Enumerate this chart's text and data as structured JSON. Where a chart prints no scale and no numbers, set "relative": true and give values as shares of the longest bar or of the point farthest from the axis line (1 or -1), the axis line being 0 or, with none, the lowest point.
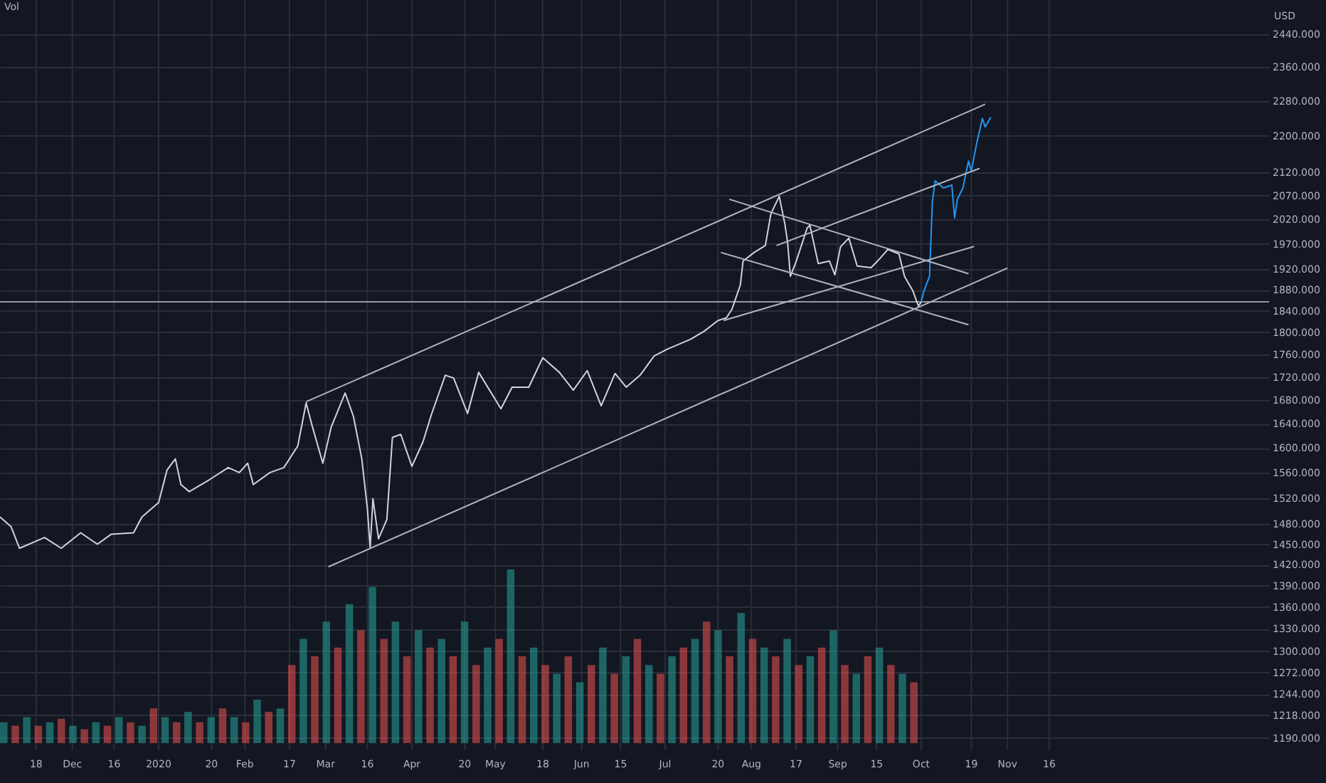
{
  "chart_data": [
    {
      "type": "line",
      "ylabel": "USD",
      "log": "y",
      "grid": true,
      "xlim": [
        "2019-11-05",
        "2021-02-03"
      ],
      "xticks": [
        {
          "value": "2019-11-18",
          "label": "18"
        },
        {
          "value": "2019-12-01",
          "label": "Dec"
        },
        {
          "value": "2019-12-16",
          "label": "16"
        },
        {
          "value": "2020-01-01",
          "label": "2020"
        },
        {
          "value": "2020-01-20",
          "label": "20"
        },
        {
          "value": "2020-02-01",
          "label": "Feb"
        },
        {
          "value": "2020-02-17",
          "label": "17"
        },
        {
          "value": "2020-03-01",
          "label": "Mar"
        },
        {
          "value": "2020-03-16",
          "label": "16"
        },
        {
          "value": "2020-04-01",
          "label": "Apr"
        },
        {
          "value": "2020-04-20",
          "label": "20"
        },
        {
          "value": "2020-05-01",
          "label": "May"
        },
        {
          "value": "2020-05-18",
          "label": "18"
        },
        {
          "value": "2020-06-01",
          "label": "Jun"
        },
        {
          "value": "2020-06-15",
          "label": "15"
        },
        {
          "value": "2020-07-01",
          "label": "Jul"
        },
        {
          "value": "2020-07-20",
          "label": "20"
        },
        {
          "value": "2020-08-01",
          "label": "Aug"
        },
        {
          "value": "2020-08-17",
          "label": "17"
        },
        {
          "value": "2020-09-01",
          "label": "Sep"
        },
        {
          "value": "2020-09-15",
          "label": "15"
        },
        {
          "value": "2020-10-01",
          "label": "Oct"
        },
        {
          "value": "2020-10-19",
          "label": "19"
        },
        {
          "value": "2020-11-01",
          "label": "Nov"
        },
        {
          "value": "2020-11-16",
          "label": "16"
        }
      ],
      "ylim": [
        1175,
        2527
      ],
      "yticks": [
        {
          "value": 2440,
          "label": "2440.000"
        },
        {
          "value": 2360,
          "label": "2360.000"
        },
        {
          "value": 2280,
          "label": "2280.000"
        },
        {
          "value": 2200,
          "label": "2200.000"
        },
        {
          "value": 2120,
          "label": "2120.000"
        },
        {
          "value": 2070,
          "label": "2070.000"
        },
        {
          "value": 2020,
          "label": "2020.000"
        },
        {
          "value": 1970,
          "label": "1970.000"
        },
        {
          "value": 1920,
          "label": "1920.000"
        },
        {
          "value": 1880,
          "label": "1880.000"
        },
        {
          "value": 1840,
          "label": "1840.000"
        },
        {
          "value": 1800,
          "label": "1800.000"
        },
        {
          "value": 1760,
          "label": "1760.000"
        },
        {
          "value": 1720,
          "label": "1720.000"
        },
        {
          "value": 1680,
          "label": "1680.000"
        },
        {
          "value": 1640,
          "label": "1640.000"
        },
        {
          "value": 1600,
          "label": "1600.000"
        },
        {
          "value": 1560,
          "label": "1560.000"
        },
        {
          "value": 1520,
          "label": "1520.000"
        },
        {
          "value": 1480,
          "label": "1480.000"
        },
        {
          "value": 1450,
          "label": "1450.000"
        },
        {
          "value": 1420,
          "label": "1420.000"
        },
        {
          "value": 1390,
          "label": "1390.000"
        },
        {
          "value": 1360,
          "label": "1360.000"
        },
        {
          "value": 1330,
          "label": "1330.000"
        },
        {
          "value": 1300,
          "label": "1300.000"
        },
        {
          "value": 1272,
          "label": "1272.000"
        },
        {
          "value": 1244,
          "label": "1244.000"
        },
        {
          "value": 1218,
          "label": "1218.000"
        },
        {
          "value": 1190,
          "label": "1190.000"
        }
      ],
      "ref_lines": [
        {
          "axis": "y",
          "value": 1857,
          "color": "#9598a1"
        }
      ],
      "series": [
        {
          "color": "#d1d4dc",
          "x": [
            "2019-11-05",
            "2019-11-09",
            "2019-11-12",
            "2019-11-21",
            "2019-11-27",
            "2019-12-04",
            "2019-12-10",
            "2019-12-15",
            "2019-12-23",
            "2019-12-26",
            "2020-01-01",
            "2020-01-04",
            "2020-01-07",
            "2020-01-09",
            "2020-01-12",
            "2020-01-19",
            "2020-01-26",
            "2020-01-30",
            "2020-02-02",
            "2020-02-04",
            "2020-02-10",
            "2020-02-15",
            "2020-02-20",
            "2020-02-23",
            "2020-02-25",
            "2020-02-29",
            "2020-03-03",
            "2020-03-08",
            "2020-03-11",
            "2020-03-14",
            "2020-03-16",
            "2020-03-17",
            "2020-03-18",
            "2020-03-20",
            "2020-03-23",
            "2020-03-25",
            "2020-03-28",
            "2020-04-01",
            "2020-04-05",
            "2020-04-08",
            "2020-04-13",
            "2020-04-16",
            "2020-04-21",
            "2020-04-25",
            "2020-05-03",
            "2020-05-07",
            "2020-05-13",
            "2020-05-18",
            "2020-05-24",
            "2020-05-29",
            "2020-06-03",
            "2020-06-08",
            "2020-06-13",
            "2020-06-17",
            "2020-06-22",
            "2020-06-27",
            "2020-07-02",
            "2020-07-10",
            "2020-07-15",
            "2020-07-20",
            "2020-07-23",
            "2020-07-25",
            "2020-07-28",
            "2020-07-29",
            "2020-08-02",
            "2020-08-06",
            "2020-08-08",
            "2020-08-11",
            "2020-08-13",
            "2020-08-14",
            "2020-08-15",
            "2020-08-17",
            "2020-08-21",
            "2020-08-22",
            "2020-08-25",
            "2020-08-29",
            "2020-08-31",
            "2020-09-02",
            "2020-09-05",
            "2020-09-08",
            "2020-09-13",
            "2020-09-16",
            "2020-09-19",
            "2020-09-23",
            "2020-09-25",
            "2020-09-28",
            "2020-09-30",
            "2020-10-01"
          ],
          "values": [
            1491,
            1476,
            1444,
            1460,
            1444,
            1467,
            1450,
            1465,
            1467,
            1491,
            1513,
            1564,
            1582,
            1541,
            1530,
            1548,
            1568,
            1560,
            1575,
            1541,
            1560,
            1568,
            1603,
            1675,
            1639,
            1575,
            1634,
            1692,
            1652,
            1582,
            1504,
            1444,
            1519,
            1458,
            1487,
            1617,
            1622,
            1570,
            1610,
            1655,
            1723,
            1718,
            1657,
            1728,
            1665,
            1702,
            1702,
            1754,
            1728,
            1697,
            1731,
            1670,
            1726,
            1702,
            1723,
            1757,
            1770,
            1787,
            1802,
            1822,
            1827,
            1843,
            1889,
            1936,
            1953,
            1967,
            2032,
            2068,
            2011,
            1973,
            1906,
            1934,
            2002,
            2008,
            1931,
            1936,
            1909,
            1964,
            1982,
            1926,
            1923,
            1940,
            1959,
            1950,
            1906,
            1878,
            1849,
            1857
          ]
        },
        {
          "color": "#2196f3",
          "x": [
            "2020-10-01",
            "2020-10-02",
            "2020-10-04",
            "2020-10-05",
            "2020-10-06",
            "2020-10-09",
            "2020-10-12",
            "2020-10-13",
            "2020-10-14",
            "2020-10-16",
            "2020-10-18",
            "2020-10-19",
            "2020-10-21",
            "2020-10-23",
            "2020-10-24",
            "2020-10-26"
          ],
          "values": [
            1857,
            1878,
            1906,
            2056,
            2101,
            2086,
            2092,
            2023,
            2062,
            2086,
            2144,
            2122,
            2185,
            2239,
            2220,
            2242
          ]
        },
        {
          "type": "line",
          "color": "#b2b5be",
          "x": [
            "2020-02-23",
            "2020-10-24"
          ],
          "values": [
            1677,
            2272
          ]
        },
        {
          "type": "line",
          "color": "#b2b5be",
          "x": [
            "2020-03-02",
            "2020-11-01"
          ],
          "values": [
            1417,
            1922
          ]
        },
        {
          "type": "line",
          "color": "#b2b5be",
          "x": [
            "2020-07-22",
            "2020-10-20"
          ],
          "values": [
            1822,
            1965
          ]
        },
        {
          "type": "line",
          "color": "#b2b5be",
          "x": [
            "2020-08-10",
            "2020-10-22"
          ],
          "values": [
            1967,
            2128
          ]
        },
        {
          "type": "line",
          "color": "#b2b5be",
          "x": [
            "2020-07-24",
            "2020-10-18"
          ],
          "values": [
            2062,
            1911
          ]
        },
        {
          "type": "line",
          "color": "#b2b5be",
          "x": [
            "2020-07-21",
            "2020-10-18"
          ],
          "values": [
            1953,
            1814
          ]
        }
      ]
    },
    {
      "type": "bar",
      "title": "Vol",
      "relative": true,
      "categories": [
        null,
        null,
        null,
        null,
        null,
        null,
        null,
        null,
        null,
        null,
        null,
        null,
        null,
        null,
        null,
        null,
        null,
        null,
        null,
        null,
        null,
        null,
        null,
        null,
        null,
        null,
        null,
        null,
        null,
        null,
        null,
        null,
        null,
        null,
        null,
        null,
        null,
        null,
        null,
        null,
        null,
        null,
        null,
        null,
        null,
        null,
        null,
        null,
        null,
        null,
        null,
        null,
        null,
        null,
        null,
        null,
        null,
        null,
        null,
        null,
        null,
        null,
        null,
        null,
        null,
        null,
        null,
        null,
        null,
        null,
        null,
        null,
        null,
        null,
        null,
        null,
        null,
        null,
        null,
        null
      ],
      "values": [
        0.12,
        0.1,
        0.15,
        0.1,
        0.12,
        0.14,
        0.1,
        0.08,
        0.12,
        0.1,
        0.15,
        0.12,
        0.1,
        0.2,
        0.15,
        0.12,
        0.18,
        0.12,
        0.15,
        0.2,
        0.15,
        0.12,
        0.25,
        0.18,
        0.2,
        0.45,
        0.6,
        0.5,
        0.7,
        0.55,
        0.8,
        0.65,
        0.9,
        0.6,
        0.7,
        0.5,
        0.65,
        0.55,
        0.6,
        0.5,
        0.7,
        0.45,
        0.55,
        0.6,
        1.0,
        0.5,
        0.55,
        0.45,
        0.4,
        0.5,
        0.35,
        0.45,
        0.55,
        0.4,
        0.5,
        0.6,
        0.45,
        0.4,
        0.5,
        0.55,
        0.6,
        0.7,
        0.65,
        0.5,
        0.75,
        0.6,
        0.55,
        0.5,
        0.6,
        0.45,
        0.5,
        0.55,
        0.65,
        0.45,
        0.4,
        0.5,
        0.55,
        0.45,
        0.4,
        0.35
      ],
      "colors": [
        "#26a69a",
        "#ef5350",
        "#26a69a",
        "#ef5350",
        "#26a69a",
        "#ef5350",
        "#26a69a",
        "#ef5350",
        "#26a69a",
        "#ef5350",
        "#26a69a",
        "#ef5350",
        "#26a69a",
        "#ef5350",
        "#26a69a",
        "#ef5350",
        "#26a69a",
        "#ef5350",
        "#26a69a",
        "#ef5350",
        "#26a69a",
        "#ef5350",
        "#26a69a",
        "#ef5350",
        "#26a69a",
        "#ef5350",
        "#26a69a",
        "#ef5350",
        "#26a69a",
        "#ef5350",
        "#26a69a",
        "#ef5350",
        "#26a69a",
        "#ef5350",
        "#26a69a",
        "#ef5350",
        "#26a69a",
        "#ef5350",
        "#26a69a",
        "#ef5350",
        "#26a69a",
        "#ef5350",
        "#26a69a",
        "#ef5350",
        "#26a69a",
        "#ef5350",
        "#26a69a",
        "#ef5350",
        "#26a69a",
        "#ef5350",
        "#26a69a",
        "#ef5350",
        "#26a69a",
        "#ef5350",
        "#26a69a",
        "#ef5350",
        "#26a69a",
        "#ef5350",
        "#26a69a",
        "#ef5350",
        "#26a69a",
        "#ef5350",
        "#26a69a",
        "#ef5350",
        "#26a69a",
        "#ef5350",
        "#26a69a",
        "#ef5350",
        "#26a69a",
        "#ef5350",
        "#26a69a",
        "#ef5350",
        "#26a69a",
        "#ef5350",
        "#26a69a",
        "#ef5350",
        "#26a69a",
        "#ef5350",
        "#26a69a",
        "#ef5350"
      ]
    }
  ]
}
